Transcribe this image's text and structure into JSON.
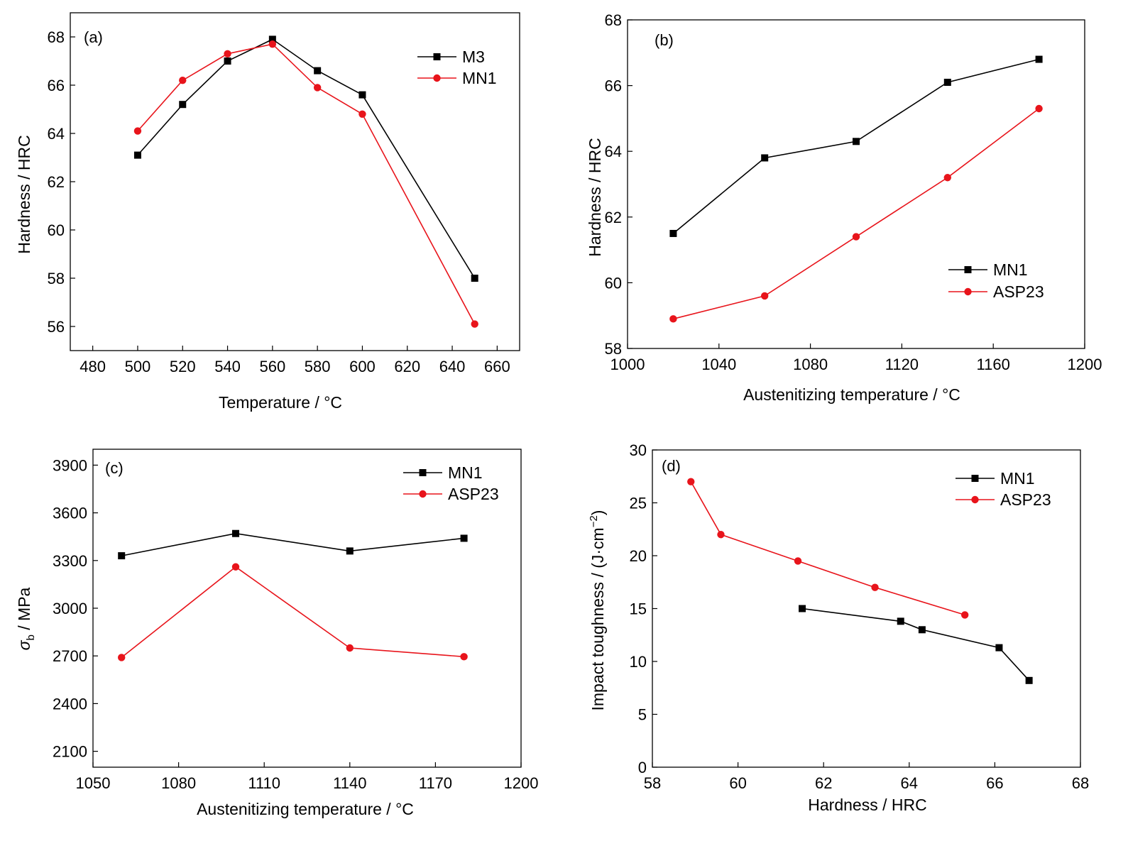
{
  "chart_data": [
    {
      "panel_label": "(a)",
      "type": "line",
      "xlabel": "Temperature / °C",
      "ylabel": "Hardness / HRC",
      "xlim": [
        470,
        670
      ],
      "ylim": [
        55,
        69
      ],
      "xticks": [
        480,
        500,
        520,
        540,
        560,
        580,
        600,
        620,
        640,
        660
      ],
      "yticks": [
        56,
        58,
        60,
        62,
        64,
        66,
        68
      ],
      "legend_position": "top-right",
      "series": [
        {
          "name": "M3",
          "color": "#000000",
          "marker": "square",
          "x": [
            500,
            520,
            540,
            560,
            580,
            600,
            650
          ],
          "y": [
            63.1,
            65.2,
            67.0,
            67.9,
            66.6,
            65.6,
            58.0
          ]
        },
        {
          "name": "MN1",
          "color": "#e8141b",
          "marker": "circle",
          "x": [
            500,
            520,
            540,
            560,
            580,
            600,
            650
          ],
          "y": [
            64.1,
            66.2,
            67.3,
            67.7,
            65.9,
            64.8,
            56.1
          ]
        }
      ]
    },
    {
      "panel_label": "(b)",
      "type": "line",
      "xlabel": "Austenitizing temperature / °C",
      "ylabel": "Hardness / HRC",
      "xlim": [
        1000,
        1200
      ],
      "ylim": [
        58,
        68
      ],
      "xticks": [
        1000,
        1040,
        1080,
        1120,
        1160,
        1200
      ],
      "yticks": [
        58,
        60,
        62,
        64,
        66,
        68
      ],
      "legend_position": "bottom-right",
      "series": [
        {
          "name": "MN1",
          "color": "#000000",
          "marker": "square",
          "x": [
            1020,
            1060,
            1100,
            1140,
            1180
          ],
          "y": [
            61.5,
            63.8,
            64.3,
            66.1,
            66.8
          ]
        },
        {
          "name": "ASP23",
          "color": "#e8141b",
          "marker": "circle",
          "x": [
            1020,
            1060,
            1100,
            1140,
            1180
          ],
          "y": [
            58.9,
            59.6,
            61.4,
            63.2,
            65.3
          ]
        }
      ]
    },
    {
      "panel_label": "(c)",
      "type": "line",
      "xlabel": "Austenitizing temperature / °C",
      "ylabel": "σ",
      "ylabel_subscript": "b",
      "ylabel_unit": " / MPa",
      "xlim": [
        1050,
        1200
      ],
      "ylim": [
        2000,
        4000
      ],
      "xticks": [
        1050,
        1080,
        1110,
        1140,
        1170,
        1200
      ],
      "yticks": [
        2100,
        2400,
        2700,
        3000,
        3300,
        3600,
        3900
      ],
      "legend_position": "top-right",
      "series": [
        {
          "name": "MN1",
          "color": "#000000",
          "marker": "square",
          "x": [
            1060,
            1100,
            1140,
            1180
          ],
          "y": [
            3330,
            3470,
            3360,
            3440
          ]
        },
        {
          "name": "ASP23",
          "color": "#e8141b",
          "marker": "circle",
          "x": [
            1060,
            1100,
            1140,
            1180
          ],
          "y": [
            2690,
            3260,
            2750,
            2695
          ]
        }
      ]
    },
    {
      "panel_label": "(d)",
      "type": "line",
      "xlabel": "Hardness / HRC",
      "ylabel": "Impact toughness / (J·cm",
      "ylabel_superscript": "−2",
      "ylabel_suffix": ")",
      "xlim": [
        58,
        68
      ],
      "ylim": [
        0,
        30
      ],
      "xticks": [
        58,
        60,
        62,
        64,
        66,
        68
      ],
      "yticks": [
        0,
        5,
        10,
        15,
        20,
        25,
        30
      ],
      "legend_position": "top-right",
      "series": [
        {
          "name": "MN1",
          "color": "#000000",
          "marker": "square",
          "x": [
            61.5,
            63.8,
            64.3,
            66.1,
            66.8
          ],
          "y": [
            15.0,
            13.8,
            13.0,
            11.3,
            8.2
          ]
        },
        {
          "name": "ASP23",
          "color": "#e8141b",
          "marker": "circle",
          "x": [
            58.9,
            59.6,
            61.4,
            63.2,
            65.3
          ],
          "y": [
            27.0,
            22.0,
            19.5,
            17.0,
            14.4
          ]
        }
      ]
    }
  ]
}
